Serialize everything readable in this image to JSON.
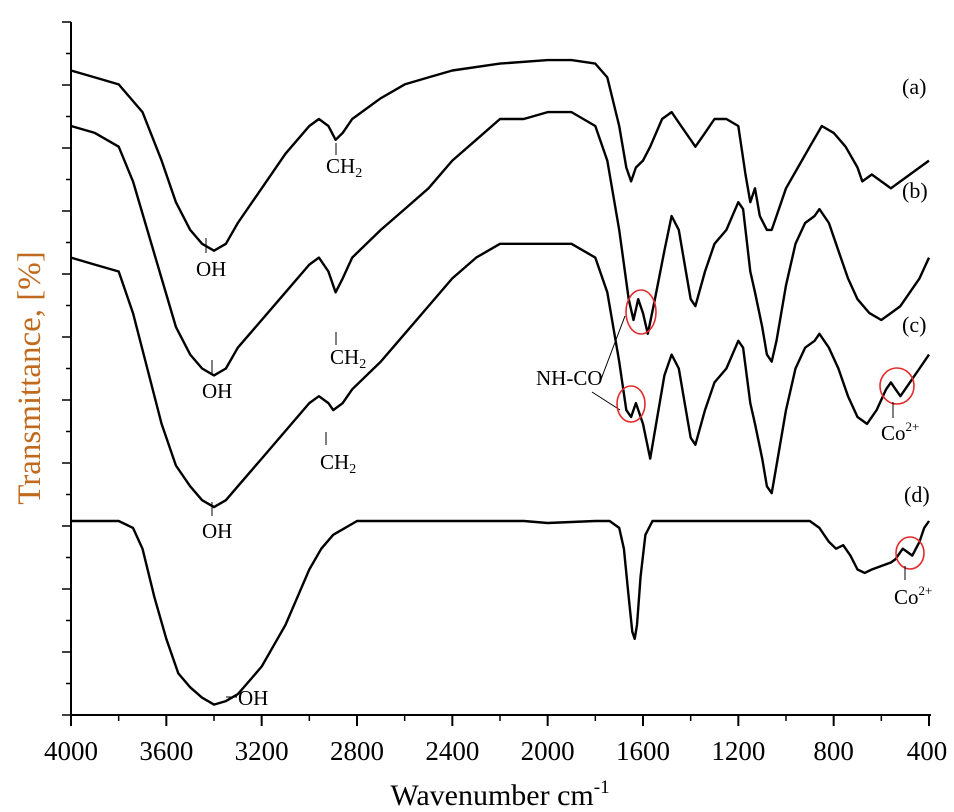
{
  "chart_data": {
    "type": "line",
    "xlabel": "Wavenumber cm",
    "xlabel_sup": "-1",
    "ylabel": "Transmittance, [%]",
    "xlim": [
      4000,
      400
    ],
    "x_reversed": true,
    "x_ticks": [
      "4000",
      "3600",
      "3200",
      "2800",
      "2400",
      "2000",
      "1600",
      "1200",
      "800",
      "400"
    ],
    "y_tick_labels": "none",
    "grid": false,
    "series": [
      {
        "name": "(a)",
        "points": [
          [
            4000,
            0.93
          ],
          [
            3900,
            0.92
          ],
          [
            3800,
            0.91
          ],
          [
            3700,
            0.87
          ],
          [
            3620,
            0.8
          ],
          [
            3560,
            0.74
          ],
          [
            3500,
            0.7
          ],
          [
            3450,
            0.68
          ],
          [
            3400,
            0.67
          ],
          [
            3350,
            0.68
          ],
          [
            3300,
            0.71
          ],
          [
            3200,
            0.76
          ],
          [
            3100,
            0.81
          ],
          [
            3000,
            0.85
          ],
          [
            2960,
            0.86
          ],
          [
            2920,
            0.85
          ],
          [
            2890,
            0.83
          ],
          [
            2860,
            0.84
          ],
          [
            2820,
            0.86
          ],
          [
            2700,
            0.89
          ],
          [
            2600,
            0.91
          ],
          [
            2500,
            0.92
          ],
          [
            2400,
            0.93
          ],
          [
            2200,
            0.94
          ],
          [
            2000,
            0.945
          ],
          [
            1900,
            0.945
          ],
          [
            1800,
            0.94
          ],
          [
            1750,
            0.92
          ],
          [
            1700,
            0.85
          ],
          [
            1670,
            0.79
          ],
          [
            1650,
            0.77
          ],
          [
            1630,
            0.79
          ],
          [
            1600,
            0.8
          ],
          [
            1570,
            0.82
          ],
          [
            1520,
            0.86
          ],
          [
            1480,
            0.87
          ],
          [
            1440,
            0.85
          ],
          [
            1400,
            0.83
          ],
          [
            1380,
            0.82
          ],
          [
            1340,
            0.84
          ],
          [
            1300,
            0.86
          ],
          [
            1250,
            0.86
          ],
          [
            1200,
            0.85
          ],
          [
            1170,
            0.78
          ],
          [
            1150,
            0.74
          ],
          [
            1130,
            0.76
          ],
          [
            1110,
            0.72
          ],
          [
            1080,
            0.7
          ],
          [
            1060,
            0.7
          ],
          [
            1040,
            0.72
          ],
          [
            1000,
            0.76
          ],
          [
            950,
            0.79
          ],
          [
            900,
            0.82
          ],
          [
            850,
            0.85
          ],
          [
            800,
            0.84
          ],
          [
            750,
            0.82
          ],
          [
            700,
            0.79
          ],
          [
            680,
            0.77
          ],
          [
            640,
            0.78
          ],
          [
            600,
            0.77
          ],
          [
            560,
            0.76
          ],
          [
            520,
            0.77
          ],
          [
            480,
            0.78
          ],
          [
            440,
            0.79
          ],
          [
            400,
            0.8
          ]
        ]
      },
      {
        "name": "(b)",
        "points": [
          [
            4000,
            0.85
          ],
          [
            3900,
            0.84
          ],
          [
            3800,
            0.82
          ],
          [
            3740,
            0.77
          ],
          [
            3680,
            0.7
          ],
          [
            3620,
            0.63
          ],
          [
            3560,
            0.56
          ],
          [
            3500,
            0.52
          ],
          [
            3450,
            0.5
          ],
          [
            3400,
            0.49
          ],
          [
            3350,
            0.5
          ],
          [
            3300,
            0.53
          ],
          [
            3200,
            0.57
          ],
          [
            3100,
            0.61
          ],
          [
            3000,
            0.65
          ],
          [
            2960,
            0.66
          ],
          [
            2920,
            0.64
          ],
          [
            2890,
            0.61
          ],
          [
            2860,
            0.63
          ],
          [
            2820,
            0.66
          ],
          [
            2700,
            0.7
          ],
          [
            2600,
            0.73
          ],
          [
            2500,
            0.76
          ],
          [
            2400,
            0.8
          ],
          [
            2300,
            0.83
          ],
          [
            2200,
            0.86
          ],
          [
            2100,
            0.86
          ],
          [
            2000,
            0.87
          ],
          [
            1900,
            0.87
          ],
          [
            1800,
            0.85
          ],
          [
            1750,
            0.8
          ],
          [
            1700,
            0.7
          ],
          [
            1660,
            0.6
          ],
          [
            1640,
            0.57
          ],
          [
            1620,
            0.6
          ],
          [
            1600,
            0.58
          ],
          [
            1580,
            0.55
          ],
          [
            1550,
            0.6
          ],
          [
            1510,
            0.67
          ],
          [
            1480,
            0.72
          ],
          [
            1450,
            0.7
          ],
          [
            1420,
            0.64
          ],
          [
            1400,
            0.6
          ],
          [
            1380,
            0.59
          ],
          [
            1340,
            0.64
          ],
          [
            1300,
            0.68
          ],
          [
            1250,
            0.7
          ],
          [
            1200,
            0.74
          ],
          [
            1180,
            0.73
          ],
          [
            1150,
            0.64
          ],
          [
            1130,
            0.61
          ],
          [
            1100,
            0.56
          ],
          [
            1080,
            0.52
          ],
          [
            1060,
            0.51
          ],
          [
            1040,
            0.54
          ],
          [
            1000,
            0.62
          ],
          [
            960,
            0.68
          ],
          [
            920,
            0.71
          ],
          [
            880,
            0.72
          ],
          [
            860,
            0.73
          ],
          [
            820,
            0.71
          ],
          [
            780,
            0.67
          ],
          [
            740,
            0.63
          ],
          [
            700,
            0.6
          ],
          [
            650,
            0.58
          ],
          [
            600,
            0.57
          ],
          [
            560,
            0.58
          ],
          [
            520,
            0.59
          ],
          [
            480,
            0.61
          ],
          [
            440,
            0.63
          ],
          [
            400,
            0.66
          ]
        ]
      },
      {
        "name": "(c)",
        "points": [
          [
            4000,
            0.66
          ],
          [
            3900,
            0.65
          ],
          [
            3800,
            0.64
          ],
          [
            3740,
            0.58
          ],
          [
            3680,
            0.5
          ],
          [
            3620,
            0.42
          ],
          [
            3560,
            0.36
          ],
          [
            3500,
            0.33
          ],
          [
            3450,
            0.31
          ],
          [
            3400,
            0.3
          ],
          [
            3350,
            0.31
          ],
          [
            3300,
            0.33
          ],
          [
            3200,
            0.37
          ],
          [
            3100,
            0.41
          ],
          [
            3000,
            0.45
          ],
          [
            2960,
            0.46
          ],
          [
            2920,
            0.45
          ],
          [
            2900,
            0.44
          ],
          [
            2860,
            0.45
          ],
          [
            2820,
            0.47
          ],
          [
            2700,
            0.51
          ],
          [
            2600,
            0.55
          ],
          [
            2500,
            0.59
          ],
          [
            2400,
            0.63
          ],
          [
            2300,
            0.66
          ],
          [
            2200,
            0.68
          ],
          [
            2100,
            0.68
          ],
          [
            2000,
            0.68
          ],
          [
            1900,
            0.68
          ],
          [
            1800,
            0.66
          ],
          [
            1750,
            0.61
          ],
          [
            1700,
            0.51
          ],
          [
            1670,
            0.44
          ],
          [
            1650,
            0.43
          ],
          [
            1630,
            0.45
          ],
          [
            1600,
            0.42
          ],
          [
            1570,
            0.37
          ],
          [
            1540,
            0.43
          ],
          [
            1510,
            0.49
          ],
          [
            1480,
            0.52
          ],
          [
            1450,
            0.5
          ],
          [
            1420,
            0.44
          ],
          [
            1400,
            0.4
          ],
          [
            1380,
            0.39
          ],
          [
            1340,
            0.44
          ],
          [
            1300,
            0.48
          ],
          [
            1250,
            0.5
          ],
          [
            1200,
            0.54
          ],
          [
            1180,
            0.53
          ],
          [
            1150,
            0.45
          ],
          [
            1130,
            0.42
          ],
          [
            1100,
            0.37
          ],
          [
            1080,
            0.33
          ],
          [
            1060,
            0.32
          ],
          [
            1040,
            0.36
          ],
          [
            1000,
            0.44
          ],
          [
            960,
            0.5
          ],
          [
            920,
            0.53
          ],
          [
            880,
            0.54
          ],
          [
            860,
            0.55
          ],
          [
            820,
            0.53
          ],
          [
            780,
            0.5
          ],
          [
            740,
            0.46
          ],
          [
            700,
            0.43
          ],
          [
            660,
            0.42
          ],
          [
            620,
            0.44
          ],
          [
            580,
            0.47
          ],
          [
            560,
            0.48
          ],
          [
            540,
            0.47
          ],
          [
            520,
            0.46
          ],
          [
            480,
            0.48
          ],
          [
            440,
            0.5
          ],
          [
            400,
            0.52
          ]
        ]
      },
      {
        "name": "(d)",
        "points": [
          [
            4000,
            0.28
          ],
          [
            3900,
            0.28
          ],
          [
            3800,
            0.28
          ],
          [
            3740,
            0.27
          ],
          [
            3700,
            0.24
          ],
          [
            3650,
            0.17
          ],
          [
            3600,
            0.11
          ],
          [
            3550,
            0.06
          ],
          [
            3500,
            0.04
          ],
          [
            3450,
            0.025
          ],
          [
            3400,
            0.015
          ],
          [
            3350,
            0.02
          ],
          [
            3300,
            0.03
          ],
          [
            3250,
            0.05
          ],
          [
            3200,
            0.07
          ],
          [
            3150,
            0.1
          ],
          [
            3100,
            0.13
          ],
          [
            3050,
            0.17
          ],
          [
            3000,
            0.21
          ],
          [
            2950,
            0.24
          ],
          [
            2900,
            0.26
          ],
          [
            2850,
            0.27
          ],
          [
            2800,
            0.28
          ],
          [
            2400,
            0.28
          ],
          [
            2100,
            0.28
          ],
          [
            2000,
            0.277
          ],
          [
            1800,
            0.28
          ],
          [
            1740,
            0.28
          ],
          [
            1700,
            0.27
          ],
          [
            1680,
            0.24
          ],
          [
            1660,
            0.17
          ],
          [
            1645,
            0.12
          ],
          [
            1635,
            0.11
          ],
          [
            1625,
            0.13
          ],
          [
            1610,
            0.2
          ],
          [
            1590,
            0.26
          ],
          [
            1560,
            0.28
          ],
          [
            1200,
            0.28
          ],
          [
            1000,
            0.28
          ],
          [
            900,
            0.28
          ],
          [
            860,
            0.27
          ],
          [
            820,
            0.25
          ],
          [
            790,
            0.24
          ],
          [
            760,
            0.245
          ],
          [
            730,
            0.23
          ],
          [
            700,
            0.21
          ],
          [
            670,
            0.205
          ],
          [
            640,
            0.21
          ],
          [
            600,
            0.215
          ],
          [
            560,
            0.22
          ],
          [
            540,
            0.225
          ],
          [
            520,
            0.235
          ],
          [
            510,
            0.24
          ],
          [
            490,
            0.235
          ],
          [
            470,
            0.23
          ],
          [
            440,
            0.25
          ],
          [
            420,
            0.27
          ],
          [
            400,
            0.28
          ]
        ]
      }
    ],
    "curve_labels": [
      "(a)",
      "(b)",
      "(c)",
      "(d)"
    ],
    "annotations": {
      "oh": "OH",
      "oh_d": "OH",
      "ch2_base": "CH",
      "ch2_sub": "2",
      "nhco": "NH-CO",
      "co_base": "Co",
      "co_sup": "2+"
    }
  }
}
